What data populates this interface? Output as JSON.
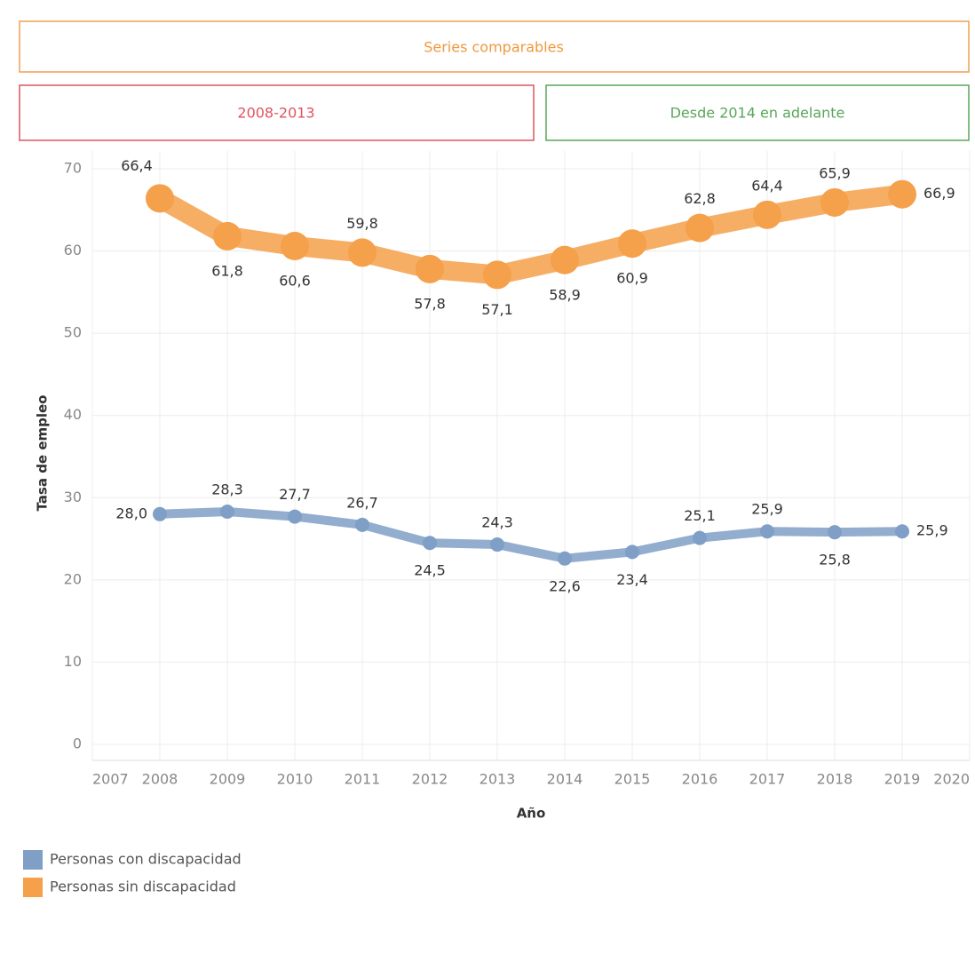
{
  "chart_data": {
    "type": "line",
    "headers": [
      "Series comparables",
      "2008-2013",
      "Desde 2014 en adelante"
    ],
    "ylabel": "Tasa de empleo",
    "xlabel": "Año",
    "x": [
      2008,
      2009,
      2010,
      2011,
      2012,
      2013,
      2014,
      2015,
      2016,
      2017,
      2018,
      2019
    ],
    "xlim": [
      2007,
      2020
    ],
    "xticks": [
      2007,
      2008,
      2009,
      2010,
      2011,
      2012,
      2013,
      2014,
      2015,
      2016,
      2017,
      2018,
      2019,
      2020
    ],
    "ylim": [
      0,
      70
    ],
    "yticks": [
      0,
      10,
      20,
      30,
      40,
      50,
      60,
      70
    ],
    "grid": true,
    "series": [
      {
        "name": "Personas con discapacidad",
        "color": "#7f9fc6",
        "values": [
          28.0,
          28.3,
          27.7,
          26.7,
          24.5,
          24.3,
          22.6,
          23.4,
          25.1,
          25.9,
          25.8,
          25.9
        ],
        "value_labels": [
          "28,0",
          "28,3",
          "27,7",
          "26,7",
          "24,5",
          "24,3",
          "22,6",
          "23,4",
          "25,1",
          "25,9",
          "25,8",
          "25,9"
        ]
      },
      {
        "name": "Personas sin discapacidad",
        "color": "#f5a04a",
        "values": [
          66.4,
          61.8,
          60.6,
          59.8,
          57.8,
          57.1,
          58.9,
          60.9,
          62.8,
          64.4,
          65.9,
          66.9
        ],
        "value_labels": [
          "66,4",
          "61,8",
          "60,6",
          "59,8",
          "57,8",
          "57,1",
          "58,9",
          "60,9",
          "62,8",
          "64,4",
          "65,9",
          "66,9"
        ]
      }
    ]
  }
}
